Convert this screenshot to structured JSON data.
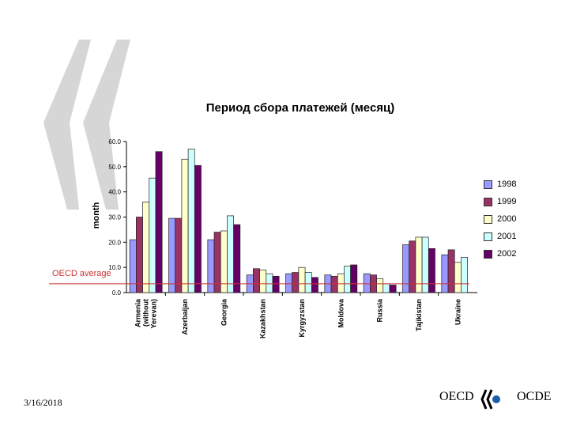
{
  "date": "3/16/2018",
  "logo": {
    "left": "OECD",
    "right": "OCDE"
  },
  "chart_data": {
    "type": "bar",
    "title": "Период сбора платежей (месяц)",
    "ylabel": "month",
    "xlabel": "",
    "ylim": [
      0,
      60
    ],
    "yticks": [
      "0.0",
      "10.0",
      "20.0",
      "30.0",
      "40.0",
      "50.0",
      "60.0"
    ],
    "categories": [
      "Armenia (without Yerevan)",
      "Azerbaijan",
      "Georgia",
      "Kazakhstan",
      "Kyrgyzstan",
      "Moldova",
      "Russia",
      "Tajikistan",
      "Ukraine"
    ],
    "series": [
      {
        "name": "1998",
        "values": [
          21,
          29.5,
          21,
          7,
          7.5,
          7,
          7.5,
          19,
          15
        ]
      },
      {
        "name": "1999",
        "values": [
          30,
          29.5,
          24,
          9.5,
          8,
          6.5,
          7,
          20.5,
          17
        ]
      },
      {
        "name": "2000",
        "values": [
          36,
          53,
          24.5,
          9,
          10,
          7.5,
          5.5,
          22,
          12
        ]
      },
      {
        "name": "2001",
        "values": [
          45.5,
          57,
          30.5,
          7.5,
          8,
          10.5,
          3.5,
          22,
          14
        ]
      },
      {
        "name": "2002",
        "values": [
          56,
          50.5,
          27,
          6.5,
          6,
          11,
          3,
          17.5,
          null
        ]
      }
    ],
    "reference_line": {
      "label": "OECD average",
      "value": 3.5,
      "color": "#cc3333"
    },
    "colors": [
      "#9999ff",
      "#993366",
      "#ffffcc",
      "#ccffff",
      "#660066"
    ],
    "legend_position": "right",
    "grid": false
  }
}
